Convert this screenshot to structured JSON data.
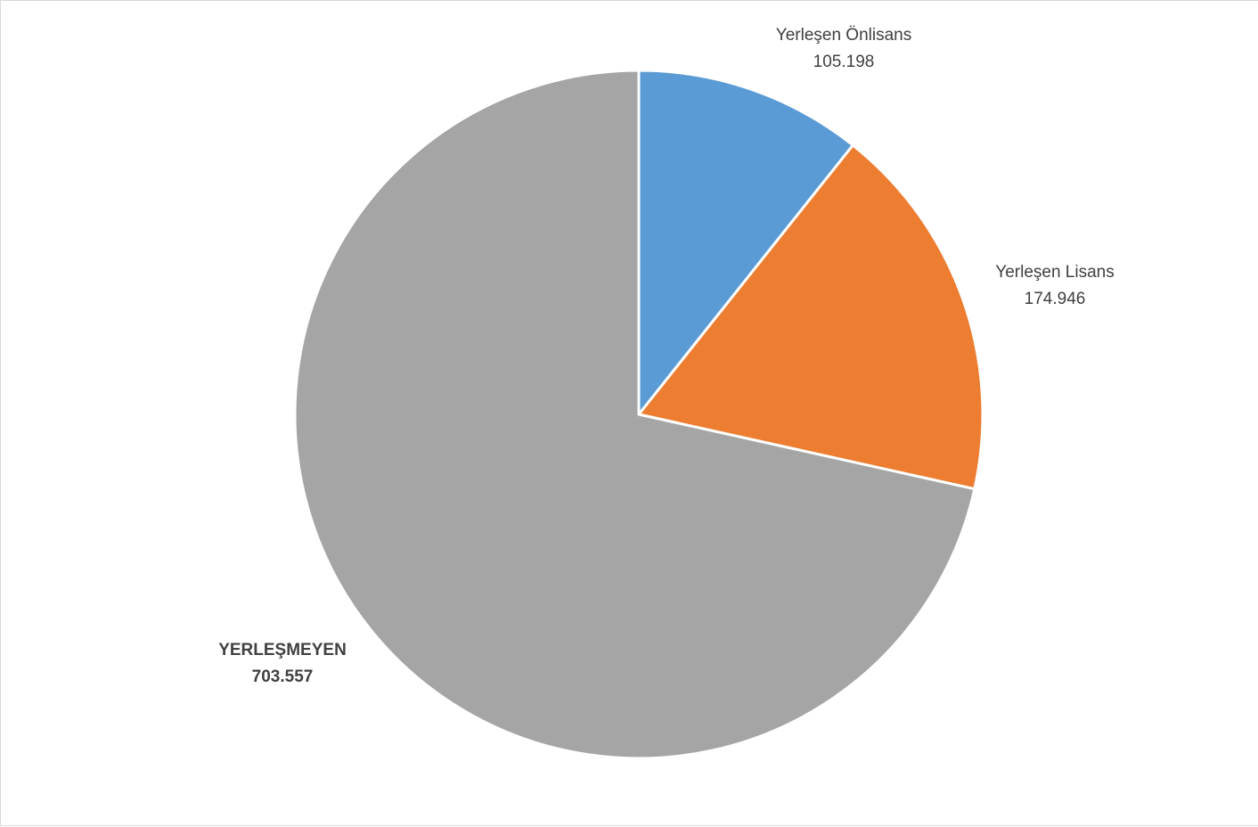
{
  "chart_data": {
    "type": "pie",
    "title": "",
    "slices": [
      {
        "label": "Yerleşen Önlisans",
        "value": 105198,
        "value_text": "105.198",
        "color": "#5b9bd5",
        "bold": false
      },
      {
        "label": "Yerleşen Lisans",
        "value": 174946,
        "value_text": "174.946",
        "color": "#ed7d31",
        "bold": false
      },
      {
        "label": "YERLEŞMEYEN",
        "value": 703557,
        "value_text": "703.557",
        "color": "#a5a5a5",
        "bold": true
      }
    ],
    "start_angle": "12 o'clock",
    "direction": "clockwise",
    "legend": "none"
  }
}
